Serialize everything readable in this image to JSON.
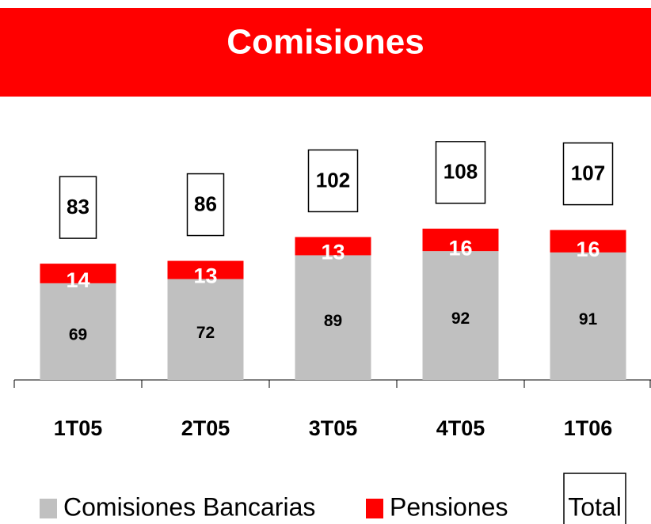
{
  "chart_data": {
    "type": "stacked_bar",
    "title": "Comisiones",
    "categories": [
      "1T05",
      "2T05",
      "3T05",
      "4T05",
      "1T06"
    ],
    "series": [
      {
        "name": "Comisiones Bancarias",
        "color": "#c0c0c0",
        "values": [
          69,
          72,
          89,
          92,
          91
        ]
      },
      {
        "name": "Pensiones",
        "color": "#ff0000",
        "values": [
          14,
          13,
          13,
          16,
          16
        ]
      }
    ],
    "totals": {
      "name": "Total",
      "values": [
        83,
        86,
        102,
        108,
        107
      ]
    }
  }
}
